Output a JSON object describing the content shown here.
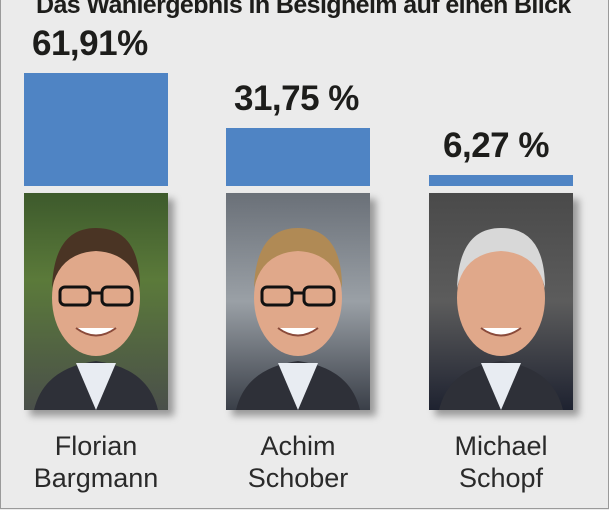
{
  "chart_data": {
    "type": "bar",
    "title": "Das Wahlergebnis in Besigheim auf einen Blick",
    "categories": [
      "Florian Bargmann",
      "Achim Schober",
      "Michael Schopf"
    ],
    "values": [
      61.91,
      31.75,
      6.27
    ],
    "value_labels": [
      "61,91%",
      "31,75 %",
      "6,27 %"
    ],
    "names": [
      [
        "Florian",
        "Bargmann"
      ],
      [
        "Achim",
        "Schober"
      ],
      [
        "Michael",
        "Schopf"
      ]
    ],
    "bar_color": "#4f84c4",
    "unit": "%",
    "grid": false
  }
}
